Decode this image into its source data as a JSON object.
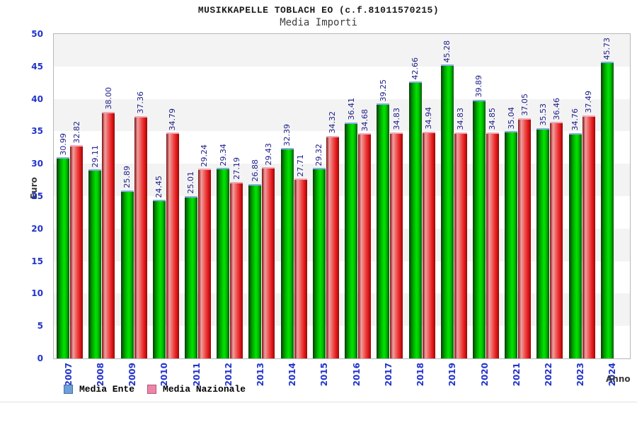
{
  "title": "MUSIKKAPELLE TOBLACH EO (c.f.81011570215)",
  "subtitle": "Media Importi",
  "y_axis_title": "Euro",
  "x_axis_title": "Anno",
  "legend": [
    {
      "label": "Media Ente",
      "swatch_color": "#6f9fd8",
      "swatch_border": "#3f6fa8"
    },
    {
      "label": "Media Nazionale",
      "swatch_color": "#ee85a8",
      "swatch_border": "#b05578"
    }
  ],
  "colors": {
    "tick_label": "#2233cc",
    "value_label": "#1c1c8a",
    "band_gray": "#f3f3f3",
    "plot_border": "#b8b8b8",
    "bar_green_main": "#00e400",
    "bar_red_main": "#e41414",
    "bar_green_cap": "#85aee3",
    "bar_red_cap": "#efa9b8"
  },
  "chart_data": {
    "type": "bar",
    "title": "MUSIKKAPELLE TOBLACH EO (c.f.81011570215)",
    "subtitle": "Media Importi",
    "xlabel": "Anno",
    "ylabel": "Euro",
    "ylim": [
      0,
      50
    ],
    "ytick_step": 5,
    "grid": "horizontal-bands",
    "legend_position": "bottom-left",
    "categories": [
      "2007",
      "2008",
      "2009",
      "2010",
      "2011",
      "2012",
      "2013",
      "2014",
      "2015",
      "2016",
      "2017",
      "2018",
      "2019",
      "2020",
      "2021",
      "2022",
      "2023",
      "2024"
    ],
    "series": [
      {
        "name": "Media Ente",
        "color": "green",
        "values": [
          30.99,
          29.11,
          25.89,
          24.45,
          25.01,
          29.34,
          26.88,
          32.39,
          29.32,
          36.41,
          39.25,
          42.66,
          45.28,
          39.89,
          35.04,
          35.53,
          34.76,
          45.73
        ]
      },
      {
        "name": "Media Nazionale",
        "color": "red",
        "values": [
          32.82,
          38.0,
          37.36,
          34.79,
          29.24,
          27.19,
          29.43,
          27.71,
          34.32,
          34.68,
          34.83,
          34.94,
          34.83,
          34.85,
          37.05,
          36.46,
          37.49,
          null
        ]
      }
    ]
  }
}
